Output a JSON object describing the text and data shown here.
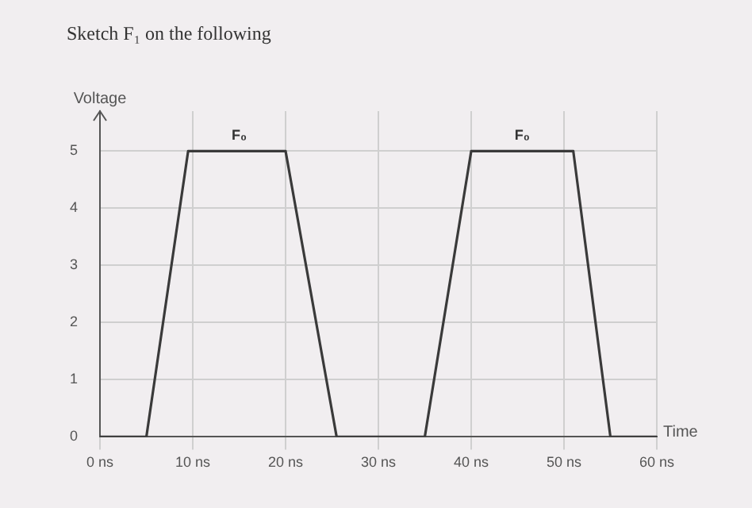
{
  "chart_data": {
    "type": "line",
    "title": "Sketch F₁ on the following",
    "xlabel": "Time",
    "ylabel": "Voltage",
    "x": [
      0,
      5,
      9.5,
      20,
      25.5,
      35,
      40,
      51,
      55,
      60
    ],
    "series": [
      {
        "color": "#3a3a3a",
        "values": [
          0,
          0,
          5,
          5,
          0,
          0,
          5,
          5,
          0,
          0
        ]
      }
    ],
    "annotations": [
      {
        "text": "F₀",
        "x": 15,
        "y": 5
      },
      {
        "text": "F₀",
        "x": 45.5,
        "y": 5
      }
    ],
    "xlim": [
      0,
      60
    ],
    "xticks": [
      {
        "value": 0,
        "label": "0 ns"
      },
      {
        "value": 10,
        "label": "10 ns"
      },
      {
        "value": 20,
        "label": "20 ns"
      },
      {
        "value": 30,
        "label": "30 ns"
      },
      {
        "value": 40,
        "label": "40 ns"
      },
      {
        "value": 50,
        "label": "50 ns"
      },
      {
        "value": 60,
        "label": "60 ns"
      }
    ],
    "ylim": [
      0,
      5.7
    ],
    "yticks": [
      0,
      1,
      2,
      3,
      4,
      5
    ],
    "grid": true,
    "legend": false,
    "marker": "none",
    "line_style": "solid"
  }
}
